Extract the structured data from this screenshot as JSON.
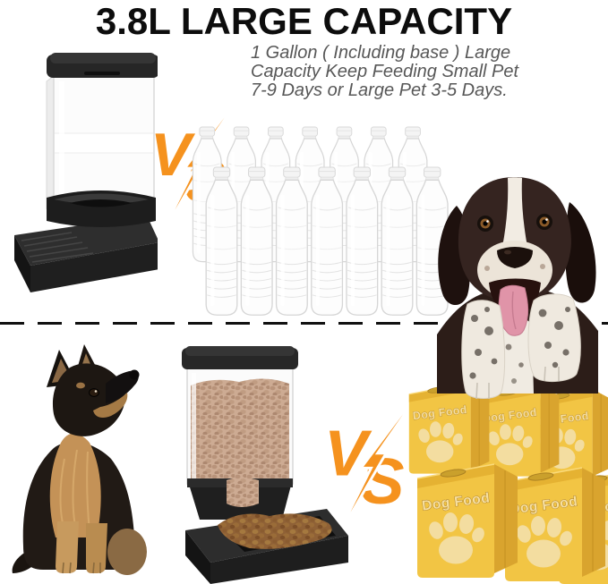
{
  "header": {
    "title": "3.8L LARGE CAPACITY",
    "subtitle_lines": [
      "1 Gallon ( Including base ) Large",
      "Capacity Keep Feeding Small Pet",
      "7-9 Days or Large Pet 3-5 Days."
    ]
  },
  "top_comparison": {
    "vs_label": "VS",
    "left_item": "black-automatic-water-dispenser",
    "right_item": "plastic-water-bottles",
    "bottles": {
      "rows": 2,
      "per_row": 7
    }
  },
  "bottom_comparison": {
    "vs_label": "VS",
    "left_item": "german-shepherd-puppy",
    "center_item": "black-automatic-food-dispenser",
    "right_item": "dog-food-bags",
    "bags": {
      "rows": 2,
      "per_row": 3,
      "label": "Dog Food"
    }
  },
  "colors": {
    "vs_orange": "#F5921E",
    "bag_yellow": "#F2C544",
    "bag_side_yellow": "#D9A42E",
    "bag_paw_cream": "#F3DDA0",
    "title_black": "#0D0D0D",
    "subtitle_gray": "#575757",
    "kibble_tan": "#CDAB93",
    "kibble_brown": "#8F6136"
  }
}
